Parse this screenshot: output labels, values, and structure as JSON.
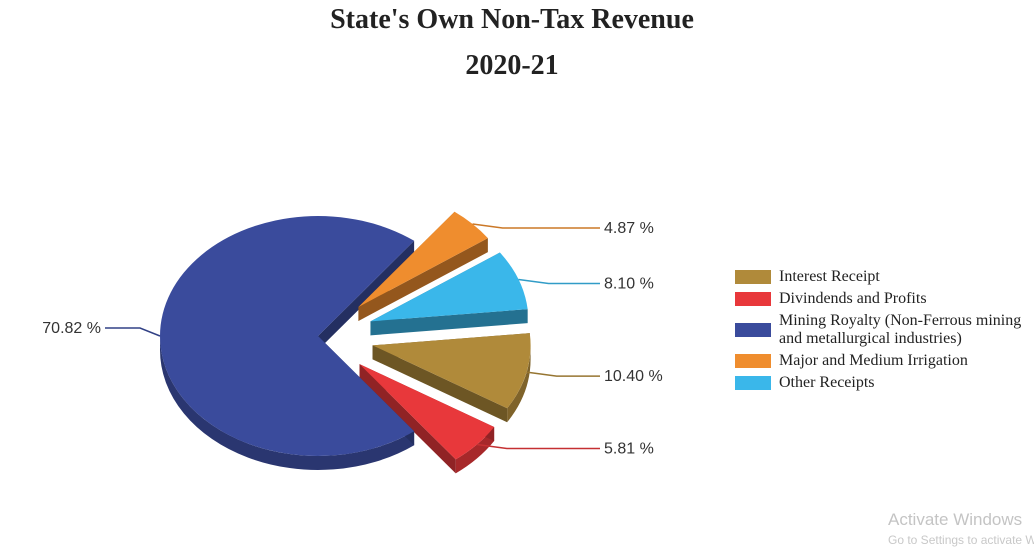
{
  "chart_data": {
    "type": "pie",
    "title": "State's Own Non-Tax Revenue",
    "subtitle": "2020-21",
    "slices": [
      {
        "label": "Interest Receipt",
        "value": 10.4,
        "display": "10.40 %",
        "color": "#b08a3a"
      },
      {
        "label": "Divindends and Profits",
        "value": 5.81,
        "display": "5.81 %",
        "color": "#e8383b"
      },
      {
        "label": "Mining Royalty (Non-Ferrous mining and metallurgical industries)",
        "value": 70.82,
        "display": "70.82 %",
        "color": "#3a4b9c"
      },
      {
        "label": "Major and Medium Irrigation",
        "value": 4.87,
        "display": "4.87 %",
        "color": "#ef8d2e"
      },
      {
        "label": "Other Receipts",
        "value": 8.1,
        "display": "8.10 %",
        "color": "#3ab7ea"
      }
    ],
    "legend_position": "right"
  },
  "watermark": {
    "line1": "Activate Windows",
    "line2": "Go to Settings to activate Windows."
  }
}
